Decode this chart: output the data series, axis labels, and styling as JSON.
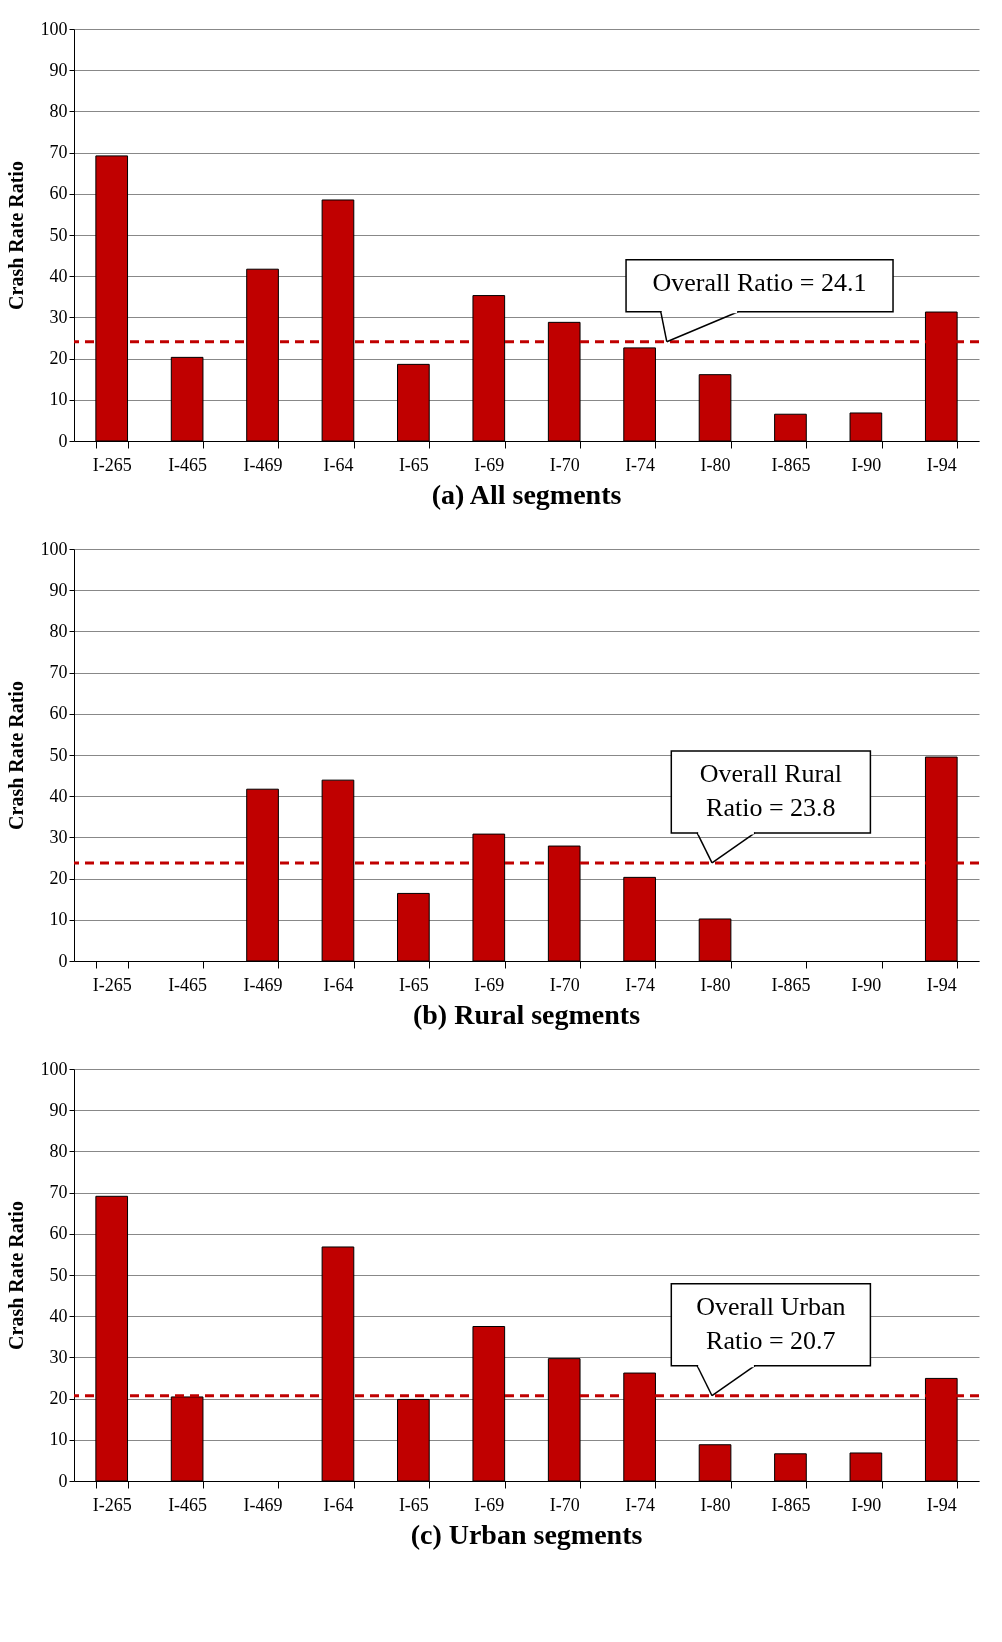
{
  "chart_data": [
    {
      "type": "bar",
      "title": "(a) All segments",
      "ylabel": "Crash Rate Ratio",
      "categories": [
        "I-265",
        "I-465",
        "I-469",
        "I-64",
        "I-65",
        "I-69",
        "I-70",
        "I-74",
        "I-80",
        "I-865",
        "I-90",
        "I-94"
      ],
      "values": [
        69.2,
        20.3,
        41.7,
        58.5,
        18.6,
        35.3,
        28.8,
        22.6,
        16.1,
        6.5,
        6.8,
        31.3
      ],
      "color": "#c00000",
      "ylim": [
        0,
        100
      ],
      "yticks": [
        0,
        10,
        20,
        30,
        40,
        50,
        60,
        70,
        80,
        90,
        100
      ],
      "grid": "y",
      "ref_lines": [
        {
          "axis": "y",
          "value": 24.1,
          "label": "Overall  Ratio = 24.1",
          "color": "#c00000",
          "line_style": "dashed"
        }
      ]
    },
    {
      "type": "bar",
      "title": "(b) Rural segments",
      "ylabel": "Crash Rate Ratio",
      "categories": [
        "I-265",
        "I-465",
        "I-469",
        "I-64",
        "I-65",
        "I-69",
        "I-70",
        "I-74",
        "I-80",
        "I-865",
        "I-90",
        "I-94"
      ],
      "values": [
        null,
        null,
        41.7,
        43.9,
        16.4,
        30.8,
        27.9,
        20.3,
        10.2,
        null,
        null,
        49.5
      ],
      "color": "#c00000",
      "ylim": [
        0,
        100
      ],
      "yticks": [
        0,
        10,
        20,
        30,
        40,
        50,
        60,
        70,
        80,
        90,
        100
      ],
      "grid": "y",
      "ref_lines": [
        {
          "axis": "y",
          "value": 23.8,
          "label": "Overall  Rural Ratio = 23.8",
          "color": "#c00000",
          "line_style": "dashed"
        }
      ]
    },
    {
      "type": "bar",
      "title": "(c) Urban segments",
      "ylabel": "Crash Rate Ratio",
      "categories": [
        "I-265",
        "I-465",
        "I-469",
        "I-64",
        "I-65",
        "I-69",
        "I-70",
        "I-74",
        "I-80",
        "I-865",
        "I-90",
        "I-94"
      ],
      "values": [
        69.1,
        20.4,
        null,
        56.8,
        19.8,
        37.5,
        29.7,
        26.2,
        8.8,
        6.6,
        6.8,
        24.9
      ],
      "color": "#c00000",
      "ylim": [
        0,
        100
      ],
      "yticks": [
        0,
        10,
        20,
        30,
        40,
        50,
        60,
        70,
        80,
        90,
        100
      ],
      "grid": "y",
      "ref_lines": [
        {
          "axis": "y",
          "value": 20.7,
          "label": "Overall  Urban Ratio = 20.7",
          "color": "#c00000",
          "line_style": "dashed"
        }
      ]
    }
  ]
}
